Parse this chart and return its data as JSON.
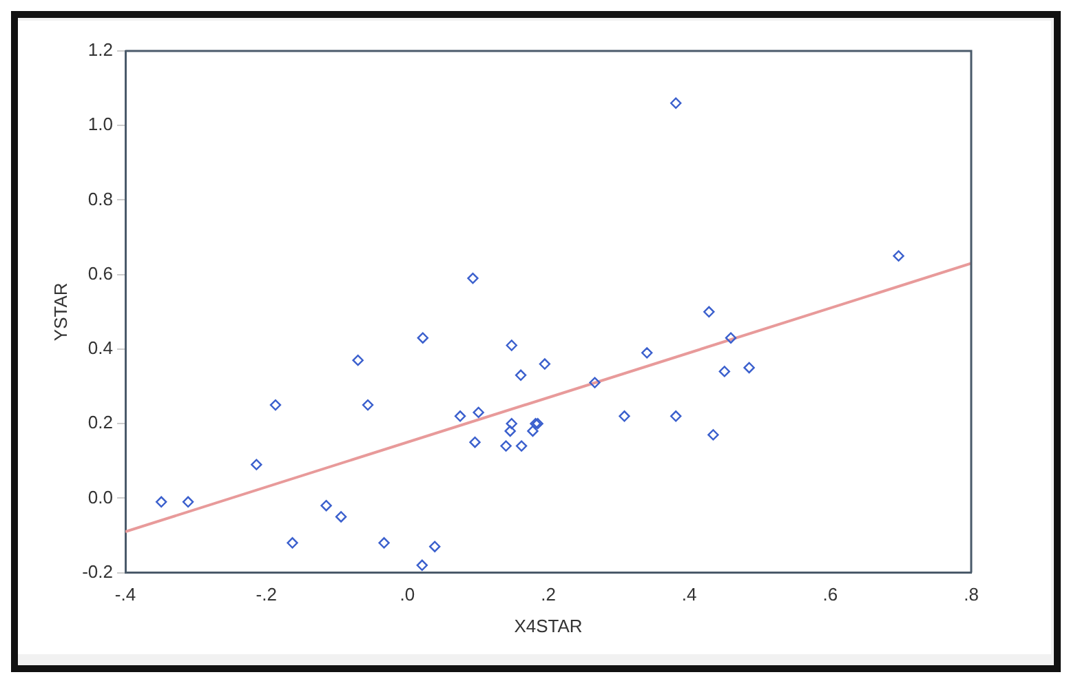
{
  "chart_data": {
    "type": "scatter",
    "xlabel": "X4STAR",
    "ylabel": "YSTAR",
    "grid": false,
    "xlim": [
      -0.4,
      0.8
    ],
    "xticks": [
      {
        "value": -0.4,
        "label": "-.4"
      },
      {
        "value": -0.2,
        "label": "-.2"
      },
      {
        "value": 0,
        "label": ".0"
      },
      {
        "value": 0.2,
        "label": ".2"
      },
      {
        "value": 0.4,
        "label": ".4"
      },
      {
        "value": 0.6,
        "label": ".6"
      },
      {
        "value": 0.8,
        "label": ".8"
      }
    ],
    "ylim": [
      -0.2,
      1.2
    ],
    "yticks": [
      -0.2,
      {
        "value": 0,
        "label": "0.0"
      },
      0.2,
      0.4,
      0.6,
      0.8,
      {
        "value": 1,
        "label": "1.0"
      },
      1.2
    ],
    "series": [
      {
        "type": "scatter",
        "marker": "diamond",
        "color": "#3a5fcd",
        "x": [
          -0.349,
          -0.311,
          -0.214,
          -0.187,
          -0.163,
          -0.115,
          -0.094,
          -0.07,
          -0.056,
          -0.033,
          0.021,
          0.039,
          0.022,
          0.093,
          0.075,
          0.101,
          0.096,
          0.148,
          0.161,
          0.195,
          0.148,
          0.146,
          0.14,
          0.162,
          0.182,
          0.178,
          0.185,
          0.266,
          0.34,
          0.308,
          0.381,
          0.381,
          0.428,
          0.459,
          0.45,
          0.485,
          0.434,
          0.697
        ],
        "values": [
          -0.01,
          -0.01,
          0.09,
          0.25,
          -0.12,
          -0.02,
          -0.05,
          0.37,
          0.25,
          -0.12,
          -0.18,
          -0.13,
          0.43,
          0.59,
          0.22,
          0.23,
          0.15,
          0.41,
          0.33,
          0.36,
          0.2,
          0.18,
          0.14,
          0.14,
          0.2,
          0.18,
          0.2,
          0.31,
          0.39,
          0.22,
          1.06,
          0.22,
          0.5,
          0.43,
          0.34,
          0.35,
          0.17,
          0.65
        ]
      },
      {
        "type": "line",
        "color": "#e89a9a",
        "x": [
          -0.4,
          0.8
        ],
        "values": [
          -0.09,
          0.63
        ]
      }
    ]
  }
}
